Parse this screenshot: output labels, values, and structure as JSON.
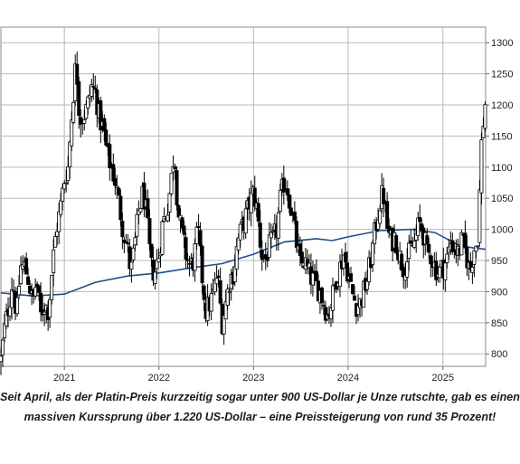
{
  "chart_data": {
    "type": "candlestick",
    "title": "",
    "xlabel": "",
    "ylabel": "",
    "x_ticks": [
      "2021",
      "2022",
      "2023",
      "2024",
      "2025"
    ],
    "y_ticks": [
      800,
      850,
      900,
      950,
      1000,
      1050,
      1100,
      1150,
      1200,
      1250,
      1300
    ],
    "ylim": [
      780,
      1325
    ],
    "xlim": [
      "2020-05-01",
      "2025-06-15"
    ],
    "grid": true,
    "up_color": "#ffffff",
    "down_color": "#000000",
    "candle_outline": "#000000",
    "close_path": [
      [
        "2020-05-01",
        790
      ],
      [
        "2020-05-15",
        840
      ],
      [
        "2020-06-01",
        880
      ],
      [
        "2020-06-15",
        920
      ],
      [
        "2020-07-01",
        860
      ],
      [
        "2020-07-15",
        940
      ],
      [
        "2020-08-01",
        940
      ],
      [
        "2020-08-15",
        920
      ],
      [
        "2020-09-01",
        880
      ],
      [
        "2020-09-15",
        920
      ],
      [
        "2020-10-01",
        860
      ],
      [
        "2020-10-15",
        880
      ],
      [
        "2020-11-01",
        870
      ],
      [
        "2020-11-15",
        940
      ],
      [
        "2020-12-01",
        1000
      ],
      [
        "2020-12-15",
        1030
      ],
      [
        "2021-01-01",
        1080
      ],
      [
        "2021-01-15",
        1100
      ],
      [
        "2021-02-01",
        1200
      ],
      [
        "2021-02-15",
        1270
      ],
      [
        "2021-03-01",
        1180
      ],
      [
        "2021-03-15",
        1180
      ],
      [
        "2021-04-01",
        1200
      ],
      [
        "2021-04-15",
        1230
      ],
      [
        "2021-05-01",
        1220
      ],
      [
        "2021-05-15",
        1180
      ],
      [
        "2021-06-01",
        1160
      ],
      [
        "2021-06-15",
        1120
      ],
      [
        "2021-07-01",
        1100
      ],
      [
        "2021-07-15",
        1080
      ],
      [
        "2021-08-01",
        1040
      ],
      [
        "2021-08-15",
        1000
      ],
      [
        "2021-09-01",
        970
      ],
      [
        "2021-09-15",
        930
      ],
      [
        "2021-10-01",
        980
      ],
      [
        "2021-10-15",
        1030
      ],
      [
        "2021-11-01",
        1060
      ],
      [
        "2021-11-15",
        1020
      ],
      [
        "2021-12-01",
        940
      ],
      [
        "2021-12-15",
        930
      ],
      [
        "2022-01-01",
        960
      ],
      [
        "2022-01-15",
        1010
      ],
      [
        "2022-02-01",
        1030
      ],
      [
        "2022-02-15",
        1070
      ],
      [
        "2022-03-01",
        1130
      ],
      [
        "2022-03-15",
        1030
      ],
      [
        "2022-04-01",
        990
      ],
      [
        "2022-04-15",
        960
      ],
      [
        "2022-05-01",
        940
      ],
      [
        "2022-05-15",
        950
      ],
      [
        "2022-06-01",
        1000
      ],
      [
        "2022-06-15",
        930
      ],
      [
        "2022-07-01",
        870
      ],
      [
        "2022-07-15",
        880
      ],
      [
        "2022-08-01",
        900
      ],
      [
        "2022-08-15",
        930
      ],
      [
        "2022-09-01",
        850
      ],
      [
        "2022-09-15",
        880
      ],
      [
        "2022-10-01",
        920
      ],
      [
        "2022-10-15",
        930
      ],
      [
        "2022-11-01",
        980
      ],
      [
        "2022-11-15",
        1000
      ],
      [
        "2022-12-01",
        1020
      ],
      [
        "2022-12-15",
        1040
      ],
      [
        "2023-01-01",
        1060
      ],
      [
        "2023-01-15",
        1030
      ],
      [
        "2023-02-01",
        960
      ],
      [
        "2023-02-15",
        950
      ],
      [
        "2023-03-01",
        970
      ],
      [
        "2023-03-15",
        980
      ],
      [
        "2023-04-01",
        1000
      ],
      [
        "2023-04-15",
        1050
      ],
      [
        "2023-05-01",
        1080
      ],
      [
        "2023-05-15",
        1060
      ],
      [
        "2023-06-01",
        1020
      ],
      [
        "2023-06-15",
        980
      ],
      [
        "2023-07-01",
        940
      ],
      [
        "2023-07-15",
        950
      ],
      [
        "2023-08-01",
        930
      ],
      [
        "2023-08-15",
        920
      ],
      [
        "2023-09-01",
        910
      ],
      [
        "2023-09-15",
        900
      ],
      [
        "2023-10-01",
        880
      ],
      [
        "2023-10-15",
        860
      ],
      [
        "2023-11-01",
        890
      ],
      [
        "2023-11-15",
        920
      ],
      [
        "2023-12-01",
        940
      ],
      [
        "2023-12-15",
        960
      ],
      [
        "2024-01-01",
        930
      ],
      [
        "2024-01-15",
        900
      ],
      [
        "2024-02-01",
        880
      ],
      [
        "2024-02-15",
        880
      ],
      [
        "2024-03-01",
        900
      ],
      [
        "2024-03-15",
        920
      ],
      [
        "2024-04-01",
        960
      ],
      [
        "2024-04-15",
        1000
      ],
      [
        "2024-05-01",
        1040
      ],
      [
        "2024-05-15",
        1060
      ],
      [
        "2024-06-01",
        1000
      ],
      [
        "2024-06-15",
        980
      ],
      [
        "2024-07-01",
        990
      ],
      [
        "2024-07-15",
        960
      ],
      [
        "2024-08-01",
        940
      ],
      [
        "2024-08-15",
        950
      ],
      [
        "2024-09-01",
        970
      ],
      [
        "2024-09-15",
        980
      ],
      [
        "2024-10-01",
        1010
      ],
      [
        "2024-10-15",
        1000
      ],
      [
        "2024-11-01",
        960
      ],
      [
        "2024-11-15",
        960
      ],
      [
        "2024-12-01",
        940
      ],
      [
        "2024-12-15",
        930
      ],
      [
        "2025-01-01",
        940
      ],
      [
        "2025-01-15",
        950
      ],
      [
        "2025-02-01",
        980
      ],
      [
        "2025-02-15",
        970
      ],
      [
        "2025-03-01",
        960
      ],
      [
        "2025-03-15",
        980
      ],
      [
        "2025-04-01",
        960
      ],
      [
        "2025-04-15",
        930
      ],
      [
        "2025-05-01",
        970
      ],
      [
        "2025-05-15",
        980
      ],
      [
        "2025-05-25",
        1080
      ],
      [
        "2025-06-01",
        1160
      ],
      [
        "2025-06-08",
        1180
      ],
      [
        "2025-06-15",
        1210
      ]
    ],
    "moving_average": {
      "color": "#1f4e8c",
      "points": [
        [
          "2020-05-01",
          898
        ],
        [
          "2020-09-01",
          893
        ],
        [
          "2021-01-01",
          896
        ],
        [
          "2021-05-01",
          915
        ],
        [
          "2021-09-01",
          925
        ],
        [
          "2022-01-01",
          930
        ],
        [
          "2022-05-01",
          938
        ],
        [
          "2022-09-01",
          945
        ],
        [
          "2023-01-01",
          960
        ],
        [
          "2023-05-01",
          980
        ],
        [
          "2023-09-01",
          985
        ],
        [
          "2023-11-01",
          982
        ],
        [
          "2024-01-01",
          988
        ],
        [
          "2024-05-01",
          998
        ],
        [
          "2024-09-01",
          1000
        ],
        [
          "2024-12-01",
          995
        ],
        [
          "2025-03-01",
          975
        ],
        [
          "2025-05-01",
          970
        ],
        [
          "2025-06-15",
          968
        ]
      ]
    }
  },
  "caption": "Seit April, als der Platin-Preis kurzzeitig sogar unter 900 US-Dollar je Unze rutschte, gab es einen massiven Kurssprung über 1.220 US-Dollar – eine Preissteigerung von rund 35 Prozent!"
}
